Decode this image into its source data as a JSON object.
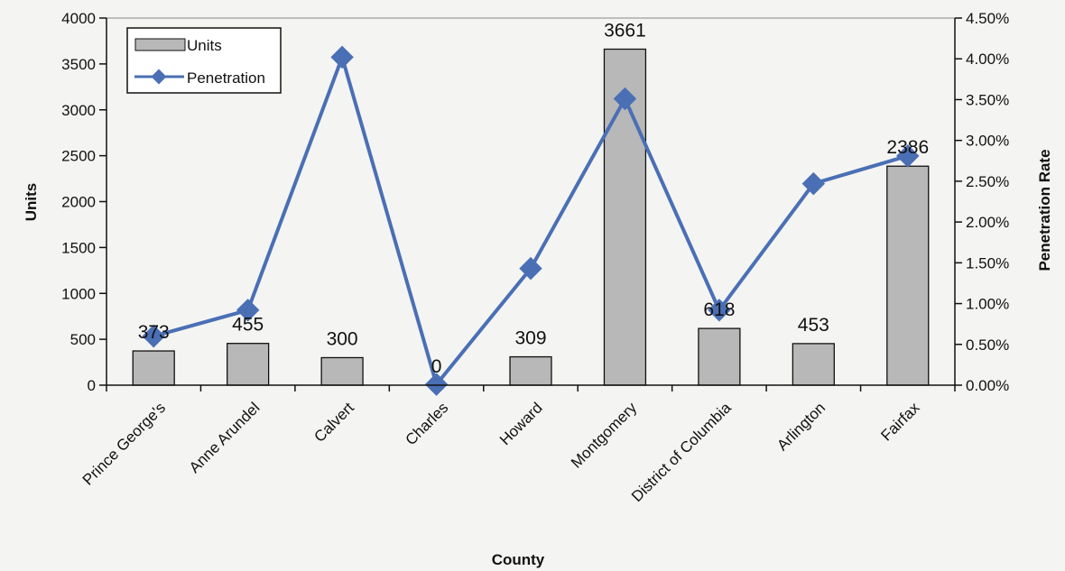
{
  "chart_data": {
    "type": "bar",
    "title": "",
    "xlabel": "County",
    "ylabel": "Units",
    "y2label": "Penetration Rate",
    "categories": [
      "Prince George's",
      "Anne Arundel",
      "Calvert",
      "Charles",
      "Howard",
      "Montgomery",
      "District of Columbia",
      "Arlington",
      "Fairfax"
    ],
    "series": [
      {
        "name": "Units",
        "type": "bar",
        "axis": "left",
        "values": [
          373,
          455,
          300,
          0,
          309,
          3661,
          618,
          453,
          2386
        ],
        "labels": [
          "373",
          "455",
          "300",
          "0",
          "309",
          "3661",
          "618",
          "453",
          "2386"
        ],
        "color": "#b8b8b8"
      },
      {
        "name": "Penetration",
        "type": "line",
        "axis": "right",
        "values": [
          0.006,
          0.0092,
          0.0402,
          0.0001,
          0.0143,
          0.0351,
          0.0092,
          0.0247,
          0.0281
        ],
        "color": "#4a6fb5"
      }
    ],
    "ylim": [
      0,
      4000
    ],
    "yticks": [
      "0",
      "500",
      "1000",
      "1500",
      "2000",
      "2500",
      "3000",
      "3500",
      "4000"
    ],
    "y2lim": [
      0,
      0.045
    ],
    "y2ticks": [
      "0.00%",
      "0.50%",
      "1.00%",
      "1.50%",
      "2.00%",
      "2.50%",
      "3.00%",
      "3.50%",
      "4.00%",
      "4.50%"
    ],
    "legend": "top-left",
    "grid": false
  }
}
